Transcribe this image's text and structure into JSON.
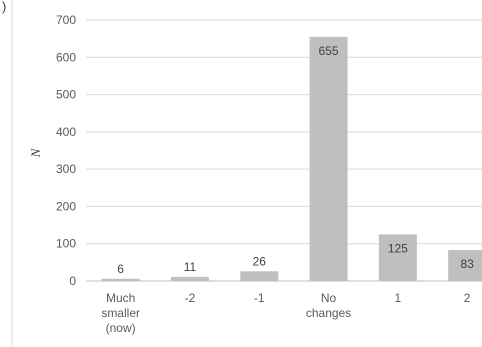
{
  "fragment_label": ")",
  "chart_data": {
    "type": "bar",
    "categories": [
      [
        "Much",
        "smaller",
        "(now)"
      ],
      [
        "-2"
      ],
      [
        "-1"
      ],
      [
        "No",
        "changes"
      ],
      [
        "1"
      ],
      [
        "2"
      ]
    ],
    "values": [
      6,
      11,
      26,
      655,
      125,
      83
    ],
    "data_labels": [
      "6",
      "11",
      "26",
      "655",
      "125",
      "83"
    ],
    "ylabel": "N",
    "ylim": [
      0,
      700
    ],
    "yticks": [
      0,
      100,
      200,
      300,
      400,
      500,
      600,
      700
    ],
    "grid": true,
    "bar_color": "#bfbfbf",
    "grid_color": "#d9d9d9"
  }
}
